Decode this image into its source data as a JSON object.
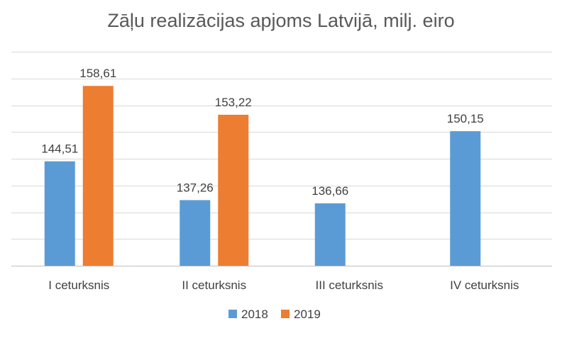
{
  "chart_data": {
    "type": "bar",
    "title": "Zāļu realizācijas apjoms Latvijā, milj. eiro",
    "categories": [
      "I ceturksnis",
      "II ceturksnis",
      "III ceturksnis",
      "IV ceturksnis"
    ],
    "series": [
      {
        "name": "2018",
        "color": "#5b9bd5",
        "values": [
          144.51,
          137.26,
          136.66,
          150.15
        ],
        "labels": [
          "144,51",
          "137,26",
          "136,66",
          "150,15"
        ]
      },
      {
        "name": "2019",
        "color": "#ed7d31",
        "values": [
          158.61,
          153.22,
          null,
          null
        ],
        "labels": [
          "158,61",
          "153,22",
          "",
          ""
        ]
      }
    ],
    "ylim": [
      125,
      165
    ],
    "grid": true,
    "legend": "bottom",
    "xlabel": "",
    "ylabel": ""
  }
}
